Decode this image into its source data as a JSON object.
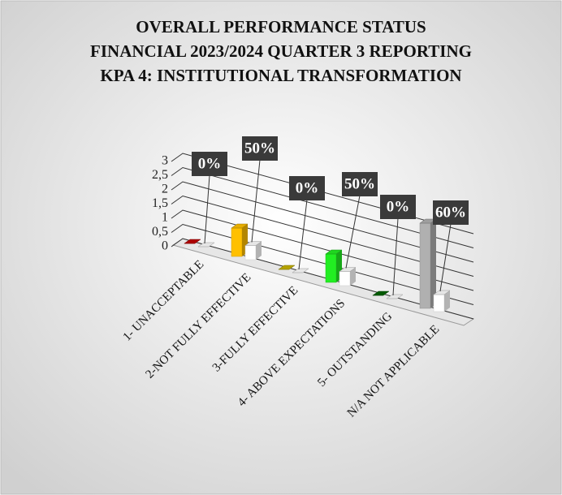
{
  "chart_data": {
    "type": "bar3d",
    "title": [
      "OVERALL PERFORMANCE STATUS",
      "FINANCIAL 2023/2024  QUARTER 3 REPORTING",
      "KPA 4: INSTITUTIONAL TRANSFORMATION"
    ],
    "categories": [
      "1- UNACCEPTABLE",
      "2-NOT FULLY EFFECTIVE",
      "3-FULLY EFFECTIVE",
      "4- ABOVE EXPECTATIONS",
      "5- OUTSTANDING",
      "N/A NOT APPLICABLE"
    ],
    "series": [
      {
        "colors": [
          "#c00000",
          "#ffc000",
          "#c8b400",
          "#22ee22",
          "#006400",
          "#b0b0b0"
        ],
        "values": [
          0,
          1,
          0,
          1,
          0,
          3
        ]
      },
      {
        "color": "#ffffff",
        "values": [
          0,
          0.5,
          0,
          0.5,
          0,
          0.6
        ],
        "value_labels": [
          "0%",
          "50%",
          "0%",
          "50%",
          "0%",
          "60%"
        ]
      }
    ],
    "ylim": [
      0,
      3
    ],
    "yticks": [
      0,
      {
        "value": 0.5,
        "label": "0,5"
      },
      1,
      {
        "value": 1.5,
        "label": "1,5"
      },
      2,
      {
        "value": 2.5,
        "label": "2,5"
      },
      3
    ],
    "grid": true
  }
}
